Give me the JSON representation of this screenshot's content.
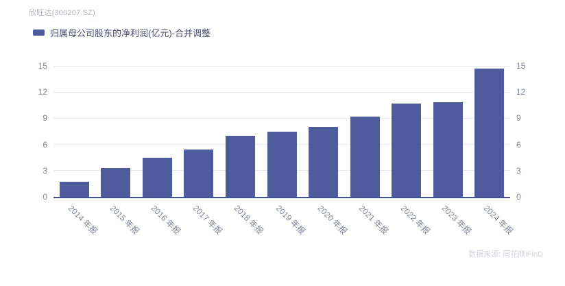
{
  "header": {
    "title": "欣旺达(300207.SZ)"
  },
  "legend": {
    "label": "归属母公司股东的净利润(亿元)-合并调整"
  },
  "footer": {
    "source": "数据来源: 同花顺iFinD"
  },
  "colors": {
    "bar": "#4e5b9c",
    "axis_line": "#424f94",
    "gridline": "#e6e8f4",
    "tick_label": "#7f8494",
    "x_label": "#80859a",
    "title": "#b3b4bc",
    "legend_text": "#4a4c6d",
    "source_text": "#d2d4de",
    "background": "#ffffff"
  },
  "chart_data": {
    "type": "bar",
    "title": "欣旺达(300207.SZ)",
    "series": [
      {
        "name": "归属母公司股东的净利润(亿元)-合并调整",
        "values": [
          1.7,
          3.3,
          4.5,
          5.45,
          7.0,
          7.5,
          8.0,
          9.2,
          10.65,
          10.8,
          14.7
        ]
      }
    ],
    "categories": [
      "2014 年报",
      "2015 年报",
      "2016 年报",
      "2017 年报",
      "2018 年报",
      "2019 年报",
      "2020 年报",
      "2021 年报",
      "2022 年报",
      "2023 年报",
      "2024 年报"
    ],
    "xlabel": "",
    "ylabel": "",
    "ylim": [
      0,
      15
    ],
    "yticks": [
      0,
      3,
      6,
      9,
      12,
      15
    ],
    "grid": true,
    "dual_y_axis": true,
    "legend_position": "top-left",
    "source_note": "数据来源: 同花顺iFinD"
  }
}
